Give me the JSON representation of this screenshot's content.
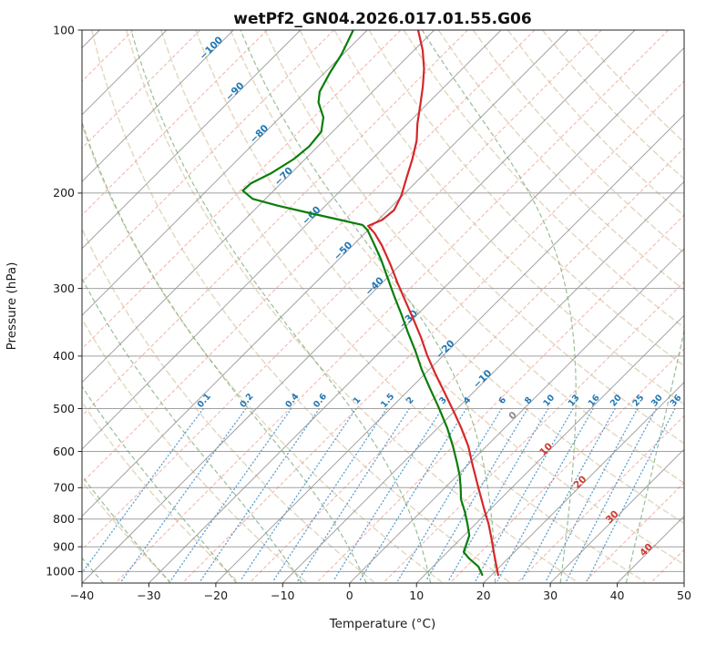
{
  "title": "wetPf2_GN04.2026.017.01.55.G06",
  "axes": {
    "xlabel": "Temperature (°C)",
    "ylabel": "Pressure (hPa)",
    "x_ticks": [
      {
        "v": -40,
        "label": "−40"
      },
      {
        "v": -30,
        "label": "−30"
      },
      {
        "v": -20,
        "label": "−20"
      },
      {
        "v": -10,
        "label": "−10"
      },
      {
        "v": 0,
        "label": "0"
      },
      {
        "v": 10,
        "label": "10"
      },
      {
        "v": 20,
        "label": "20"
      },
      {
        "v": 30,
        "label": "30"
      },
      {
        "v": 40,
        "label": "40"
      },
      {
        "v": 50,
        "label": "50"
      }
    ],
    "y_ticks": [
      {
        "v": 100,
        "label": "100"
      },
      {
        "v": 200,
        "label": "200"
      },
      {
        "v": 300,
        "label": "300"
      },
      {
        "v": 400,
        "label": "400"
      },
      {
        "v": 500,
        "label": "500"
      },
      {
        "v": 600,
        "label": "600"
      },
      {
        "v": 700,
        "label": "700"
      },
      {
        "v": 800,
        "label": "800"
      },
      {
        "v": 900,
        "label": "900"
      },
      {
        "v": 1000,
        "label": "1000"
      }
    ]
  },
  "chart_data": {
    "type": "skewT-logP",
    "t_range": [
      -40,
      50
    ],
    "p_range": [
      100,
      1050
    ],
    "skew_deg": 45,
    "grid": true,
    "isobars": {
      "values": [
        100,
        200,
        300,
        400,
        500,
        600,
        700,
        800,
        900,
        1000
      ]
    },
    "isotherms": {
      "min": -120,
      "max": 50,
      "step": 10
    },
    "isotherm_minor": {
      "min": -115,
      "max": 45,
      "step": 10
    },
    "dry_adiabats": {
      "min": -30,
      "max": 160,
      "step": 10
    },
    "moist_adiabats": {
      "min": -40,
      "max": 60,
      "step": 10
    },
    "mixing_ratios": {
      "values": [
        0.1,
        0.2,
        0.4,
        0.6,
        1,
        1.5,
        2,
        3,
        4,
        6,
        8,
        10,
        13,
        16,
        20,
        25,
        30,
        36
      ],
      "labels": [
        "0.1",
        "0.2",
        "0.4",
        "0.6",
        "1",
        "1.5",
        "2",
        "3",
        "4",
        "6",
        "8",
        "10",
        "13",
        "16",
        "20",
        "25",
        "30",
        "36"
      ],
      "label_pressure": 500
    },
    "isotherm_labels": [
      {
        "label": "−100",
        "t": -100,
        "p": 109,
        "color": "#1f77b4"
      },
      {
        "label": "−90",
        "t": -90,
        "p": 131,
        "color": "#1f77b4"
      },
      {
        "label": "−80",
        "t": -80,
        "p": 157,
        "color": "#1f77b4"
      },
      {
        "label": "−70",
        "t": -70,
        "p": 188,
        "color": "#1f77b4"
      },
      {
        "label": "−60",
        "t": -60,
        "p": 222,
        "color": "#1f77b4"
      },
      {
        "label": "−50",
        "t": -50,
        "p": 258,
        "color": "#1f77b4"
      },
      {
        "label": "−40",
        "t": -40,
        "p": 300,
        "color": "#1f77b4"
      },
      {
        "label": "−30",
        "t": -30,
        "p": 345,
        "color": "#1f77b4"
      },
      {
        "label": "−20",
        "t": -20,
        "p": 392,
        "color": "#1f77b4"
      },
      {
        "label": "−10",
        "t": -10,
        "p": 445,
        "color": "#1f77b4"
      },
      {
        "label": "0",
        "t": 0,
        "p": 520,
        "color": "#8a8a8a"
      },
      {
        "label": "10",
        "t": 10,
        "p": 600,
        "color": "#cc3b32"
      },
      {
        "label": "20",
        "t": 20,
        "p": 690,
        "color": "#cc3b32"
      },
      {
        "label": "30",
        "t": 30,
        "p": 800,
        "color": "#cc3b32"
      },
      {
        "label": "40",
        "t": 40,
        "p": 920,
        "color": "#cc3b32"
      }
    ],
    "temperature_profile": {
      "name": "temperature",
      "points": [
        [
          100,
          -72.4
        ],
        [
          109,
          -68.7
        ],
        [
          118,
          -65.7
        ],
        [
          127,
          -63.3
        ],
        [
          137,
          -61.0
        ],
        [
          149,
          -58.5
        ],
        [
          160,
          -56.1
        ],
        [
          173,
          -54.0
        ],
        [
          187,
          -52.1
        ],
        [
          202,
          -50.2
        ],
        [
          215,
          -49.1
        ],
        [
          224,
          -49.4
        ],
        [
          230,
          -50.6
        ],
        [
          237,
          -48.6
        ],
        [
          250,
          -45.6
        ],
        [
          271,
          -41.5
        ],
        [
          293,
          -37.7
        ],
        [
          316,
          -33.9
        ],
        [
          342,
          -29.9
        ],
        [
          369,
          -26.1
        ],
        [
          399,
          -22.4
        ],
        [
          431,
          -18.5
        ],
        [
          466,
          -14.4
        ],
        [
          509,
          -9.8
        ],
        [
          544,
          -6.4
        ],
        [
          587,
          -2.7
        ],
        [
          635,
          0.7
        ],
        [
          686,
          4.1
        ],
        [
          716,
          6.0
        ],
        [
          764,
          8.9
        ],
        [
          816,
          11.9
        ],
        [
          872,
          14.7
        ],
        [
          920,
          16.9
        ],
        [
          972,
          19.2
        ],
        [
          1015,
          21.0
        ]
      ]
    },
    "dewpoint_profile": {
      "name": "dewpoint",
      "points": [
        [
          100,
          -82.1
        ],
        [
          111,
          -80.2
        ],
        [
          120,
          -79.2
        ],
        [
          130,
          -77.9
        ],
        [
          136,
          -76.5
        ],
        [
          145,
          -73.5
        ],
        [
          154,
          -71.7
        ],
        [
          164,
          -71.3
        ],
        [
          173,
          -71.7
        ],
        [
          184,
          -73.0
        ],
        [
          192,
          -74.5
        ],
        [
          198,
          -74.6
        ],
        [
          205,
          -71.9
        ],
        [
          211,
          -67.1
        ],
        [
          217,
          -61.9
        ],
        [
          223,
          -56.7
        ],
        [
          229,
          -51.6
        ],
        [
          234,
          -50.1
        ],
        [
          246,
          -47.5
        ],
        [
          265,
          -43.7
        ],
        [
          287,
          -39.9
        ],
        [
          310,
          -36.2
        ],
        [
          335,
          -32.4
        ],
        [
          362,
          -28.7
        ],
        [
          391,
          -24.9
        ],
        [
          423,
          -21.2
        ],
        [
          457,
          -17.3
        ],
        [
          493,
          -13.4
        ],
        [
          509,
          -11.8
        ],
        [
          544,
          -8.5
        ],
        [
          587,
          -5.0
        ],
        [
          630,
          -1.9
        ],
        [
          665,
          0.4
        ],
        [
          699,
          2.3
        ],
        [
          735,
          4.1
        ],
        [
          776,
          6.6
        ],
        [
          819,
          8.9
        ],
        [
          858,
          10.8
        ],
        [
          892,
          11.7
        ],
        [
          920,
          12.4
        ],
        [
          946,
          14.2
        ],
        [
          979,
          16.8
        ],
        [
          1014,
          18.6
        ]
      ]
    },
    "colors": {
      "temperature": "#d62728",
      "dewpoint": "#0a7d0a",
      "isobar": "#909090",
      "isotherm": "#909090",
      "red_dashed": "#ea9187",
      "dry_adiabat": "#cdb991",
      "moist_adiabat": "#74aa74",
      "mixing_ratio": "#3d8ec9",
      "mixing_label": "#1f77b4",
      "axis": "#262626"
    }
  }
}
